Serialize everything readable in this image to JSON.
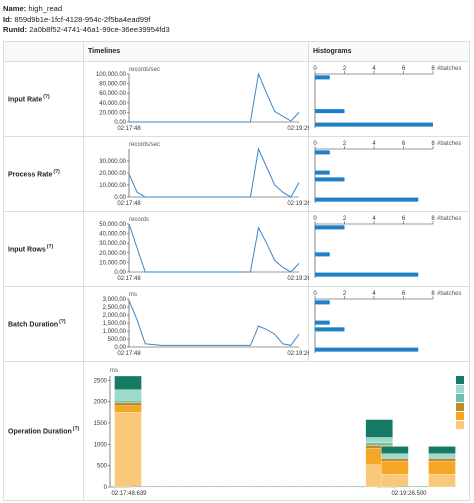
{
  "info": {
    "name_label": "Name:",
    "name_value": "high_read",
    "id_label": "Id:",
    "id_value": "859d9b1e-1fcf-4128-954c-2f5ba4ead99f",
    "runid_label": "RunId:",
    "runid_value": "2a0b8f52-4741-46a1-99ce-36ee39954fd3"
  },
  "headers": {
    "col1": "",
    "col2": "Timelines",
    "col3": "Histograms"
  },
  "rows": {
    "input_rate": {
      "label": "Input Rate",
      "help": "(?)"
    },
    "process_rate": {
      "label": "Process Rate",
      "help": "(?)"
    },
    "input_rows": {
      "label": "Input Rows",
      "help": "(?)"
    },
    "batch_duration": {
      "label": "Batch Duration",
      "help": "(?)"
    },
    "operation_duration": {
      "label": "Operation Duration",
      "help": "(?)"
    }
  },
  "colors": {
    "line": "#3a86c8",
    "bar": "#1f80c7"
  },
  "chart_data": [
    {
      "type": "line",
      "id": "input_rate_timeline",
      "ylabel": "records/sec",
      "yticks": [
        "100,000.00",
        "80,000.00",
        "60,000.00",
        "40,000.00",
        "20,000.00",
        "0.00"
      ],
      "ylim": [
        0,
        100000
      ],
      "xticks": [
        "02:17:48",
        "02:19:26"
      ],
      "values": [
        0,
        0,
        0,
        0,
        0,
        0,
        0,
        0,
        0,
        0,
        0,
        0,
        0,
        0,
        0,
        0,
        100000,
        60000,
        22000,
        12000,
        2000,
        20000
      ]
    },
    {
      "type": "bar",
      "id": "input_rate_histogram",
      "xlabel": "#batches",
      "xticks": [
        "0",
        "2",
        "4",
        "6",
        "8"
      ],
      "xlim": [
        0,
        8
      ],
      "values": [
        1,
        0,
        0,
        0,
        0,
        2,
        0,
        8
      ]
    },
    {
      "type": "line",
      "id": "process_rate_timeline",
      "ylabel": "records/sec",
      "yticks": [
        "30,000.00",
        "20,000.00",
        "10,000.00",
        "0.00"
      ],
      "ylim": [
        0,
        40000
      ],
      "xticks": [
        "02:17:48",
        "02:19:26"
      ],
      "values": [
        19000,
        4000,
        0,
        0,
        0,
        0,
        0,
        0,
        0,
        0,
        0,
        0,
        0,
        0,
        0,
        0,
        40000,
        25000,
        10000,
        4000,
        0,
        12000
      ]
    },
    {
      "type": "bar",
      "id": "process_rate_histogram",
      "xlabel": "#batches",
      "xticks": [
        "0",
        "2",
        "4",
        "6",
        "8"
      ],
      "xlim": [
        0,
        8
      ],
      "values": [
        1,
        0,
        0,
        1,
        2,
        0,
        0,
        7
      ]
    },
    {
      "type": "line",
      "id": "input_rows_timeline",
      "ylabel": "records",
      "yticks": [
        "50,000.00",
        "40,000.00",
        "30,000.00",
        "20,000.00",
        "10,000.00",
        "0.00"
      ],
      "ylim": [
        0,
        50000
      ],
      "xticks": [
        "02:17:48",
        "02:19:26"
      ],
      "values": [
        50000,
        25000,
        0,
        0,
        0,
        0,
        0,
        0,
        0,
        0,
        0,
        0,
        0,
        0,
        0,
        0,
        46000,
        30000,
        12000,
        5000,
        0,
        9000
      ]
    },
    {
      "type": "bar",
      "id": "input_rows_histogram",
      "xlabel": "#batches",
      "xticks": [
        "0",
        "2",
        "4",
        "6",
        "8"
      ],
      "xlim": [
        0,
        8
      ],
      "values": [
        2,
        0,
        0,
        0,
        1,
        0,
        0,
        7
      ]
    },
    {
      "type": "line",
      "id": "batch_duration_timeline",
      "ylabel": "ms",
      "yticks": [
        "3,000.00",
        "2,500.00",
        "2,000.00",
        "1,500.00",
        "1,000.00",
        "500.00",
        "0.00"
      ],
      "ylim": [
        0,
        3000
      ],
      "xticks": [
        "02:17:48",
        "02:19:26"
      ],
      "values": [
        2900,
        1700,
        200,
        150,
        100,
        100,
        100,
        100,
        100,
        100,
        100,
        100,
        100,
        100,
        100,
        100,
        1300,
        1100,
        800,
        200,
        100,
        800
      ]
    },
    {
      "type": "bar",
      "id": "batch_duration_histogram",
      "xlabel": "#batches",
      "xticks": [
        "0",
        "2",
        "4",
        "6",
        "8"
      ],
      "xlim": [
        0,
        8
      ],
      "values": [
        1,
        0,
        0,
        1,
        2,
        0,
        0,
        7
      ]
    },
    {
      "type": "bar",
      "id": "operation_duration_stacked",
      "ylabel": "ms",
      "yticks": [
        "2500",
        "2000",
        "1500",
        "1000",
        "500",
        "0"
      ],
      "ylim": [
        0,
        2600
      ],
      "xticks": [
        "02:17:48.639",
        "02:19:26.500"
      ],
      "segment_colors": [
        "#f9c87a",
        "#f5a623",
        "#c48a2a",
        "#6cc1b0",
        "#9ed9cc",
        "#157a65"
      ],
      "batches": [
        {
          "pos": 0,
          "segments": [
            1750,
            150,
            80,
            50,
            250,
            320
          ]
        },
        {
          "pos": 1,
          "segments": [
            5,
            3,
            2,
            1,
            1,
            2
          ]
        },
        {
          "pos": 2,
          "segments": [
            5,
            3,
            2,
            1,
            1,
            2
          ]
        },
        {
          "pos": 3,
          "segments": [
            5,
            3,
            2,
            1,
            1,
            2
          ]
        },
        {
          "pos": 4,
          "segments": [
            5,
            3,
            2,
            1,
            1,
            2
          ]
        },
        {
          "pos": 5,
          "segments": [
            5,
            3,
            2,
            1,
            1,
            2
          ]
        },
        {
          "pos": 6,
          "segments": [
            5,
            3,
            2,
            1,
            1,
            2
          ]
        },
        {
          "pos": 7,
          "segments": [
            5,
            3,
            2,
            1,
            1,
            2
          ]
        },
        {
          "pos": 8,
          "segments": [
            5,
            3,
            2,
            1,
            1,
            2
          ]
        },
        {
          "pos": 9,
          "segments": [
            5,
            3,
            2,
            1,
            1,
            2
          ]
        },
        {
          "pos": 10,
          "segments": [
            5,
            3,
            2,
            1,
            1,
            2
          ]
        },
        {
          "pos": 11,
          "segments": [
            5,
            3,
            2,
            1,
            1,
            2
          ]
        },
        {
          "pos": 12,
          "segments": [
            5,
            3,
            2,
            1,
            1,
            2
          ]
        },
        {
          "pos": 13,
          "segments": [
            5,
            3,
            2,
            1,
            1,
            2
          ]
        },
        {
          "pos": 14,
          "segments": [
            5,
            3,
            2,
            1,
            1,
            2
          ]
        },
        {
          "pos": 15,
          "segments": [
            5,
            3,
            2,
            1,
            1,
            2
          ]
        },
        {
          "pos": 16,
          "segments": [
            520,
            380,
            80,
            60,
            120,
            420
          ]
        },
        {
          "pos": 17,
          "segments": [
            300,
            300,
            60,
            40,
            80,
            170
          ]
        },
        {
          "pos": 18,
          "segments": [
            5,
            3,
            2,
            1,
            1,
            2
          ]
        },
        {
          "pos": 19,
          "segments": [
            5,
            3,
            2,
            1,
            1,
            2
          ]
        },
        {
          "pos": 20,
          "segments": [
            300,
            300,
            60,
            40,
            80,
            170
          ]
        }
      ]
    }
  ]
}
